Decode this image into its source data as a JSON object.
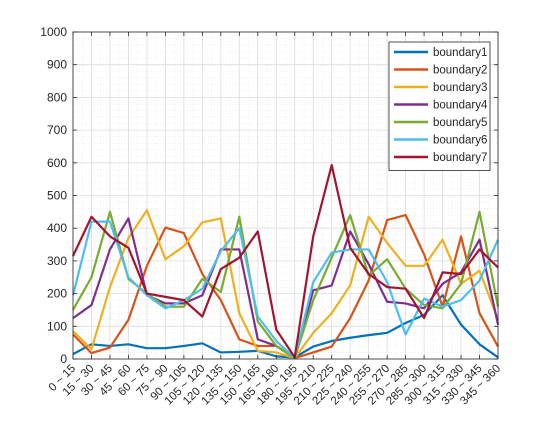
{
  "chart_data": {
    "type": "line",
    "title": "",
    "xlabel": "",
    "ylabel": "",
    "ylim": [
      0,
      1000
    ],
    "yticks": [
      0,
      100,
      200,
      300,
      400,
      500,
      600,
      700,
      800,
      900,
      1000
    ],
    "grid": true,
    "minor_grid": true,
    "legend_position": "top-right",
    "categories": [
      "0 ~ 15",
      "15 ~ 30",
      "30 ~ 45",
      "45 ~ 60",
      "60 ~ 75",
      "75 ~ 90",
      "90 ~ 105",
      "105 ~ 120",
      "120 ~ 135",
      "135 ~ 150",
      "150 ~ 165",
      "165 ~ 180",
      "180 ~ 195",
      "195 ~ 210",
      "210 ~ 225",
      "225 ~ 240",
      "240 ~ 255",
      "255 ~ 270",
      "270 ~ 285",
      "285 ~ 300",
      "300 ~ 315",
      "315 ~ 330",
      "330 ~ 345",
      "345 ~ 360"
    ],
    "series": [
      {
        "name": "boundary1",
        "color": "#0072BD",
        "values": [
          15,
          45,
          40,
          45,
          33,
          33,
          40,
          48,
          20,
          22,
          25,
          8,
          5,
          38,
          55,
          65,
          73,
          80,
          110,
          135,
          195,
          105,
          45,
          5
        ]
      },
      {
        "name": "boundary2",
        "color": "#D95319",
        "values": [
          75,
          18,
          35,
          120,
          285,
          402,
          385,
          260,
          180,
          60,
          40,
          40,
          3,
          20,
          38,
          125,
          240,
          425,
          440,
          320,
          160,
          375,
          140,
          38
        ]
      },
      {
        "name": "boundary3",
        "color": "#EDB120",
        "values": [
          85,
          30,
          220,
          370,
          455,
          305,
          345,
          418,
          430,
          140,
          25,
          20,
          3,
          80,
          140,
          225,
          435,
          355,
          285,
          285,
          365,
          230,
          270,
          120
        ]
      },
      {
        "name": "boundary4",
        "color": "#7E2F8E",
        "values": [
          125,
          165,
          335,
          430,
          195,
          170,
          170,
          195,
          335,
          335,
          60,
          40,
          3,
          210,
          225,
          390,
          290,
          175,
          170,
          155,
          230,
          265,
          365,
          105
        ]
      },
      {
        "name": "boundary5",
        "color": "#77AC30",
        "values": [
          150,
          250,
          450,
          245,
          200,
          160,
          160,
          245,
          205,
          435,
          115,
          40,
          3,
          180,
          310,
          440,
          255,
          305,
          215,
          165,
          155,
          230,
          450,
          160
        ]
      },
      {
        "name": "boundary6",
        "color": "#4DBEEE",
        "values": [
          195,
          420,
          420,
          250,
          195,
          155,
          180,
          215,
          330,
          400,
          130,
          55,
          3,
          235,
          325,
          335,
          335,
          235,
          75,
          185,
          160,
          180,
          240,
          365
        ]
      },
      {
        "name": "boundary7",
        "color": "#A2142F",
        "values": [
          315,
          435,
          375,
          340,
          200,
          190,
          180,
          130,
          275,
          310,
          390,
          90,
          5,
          375,
          593,
          340,
          260,
          220,
          215,
          125,
          265,
          260,
          335,
          280
        ]
      }
    ]
  }
}
